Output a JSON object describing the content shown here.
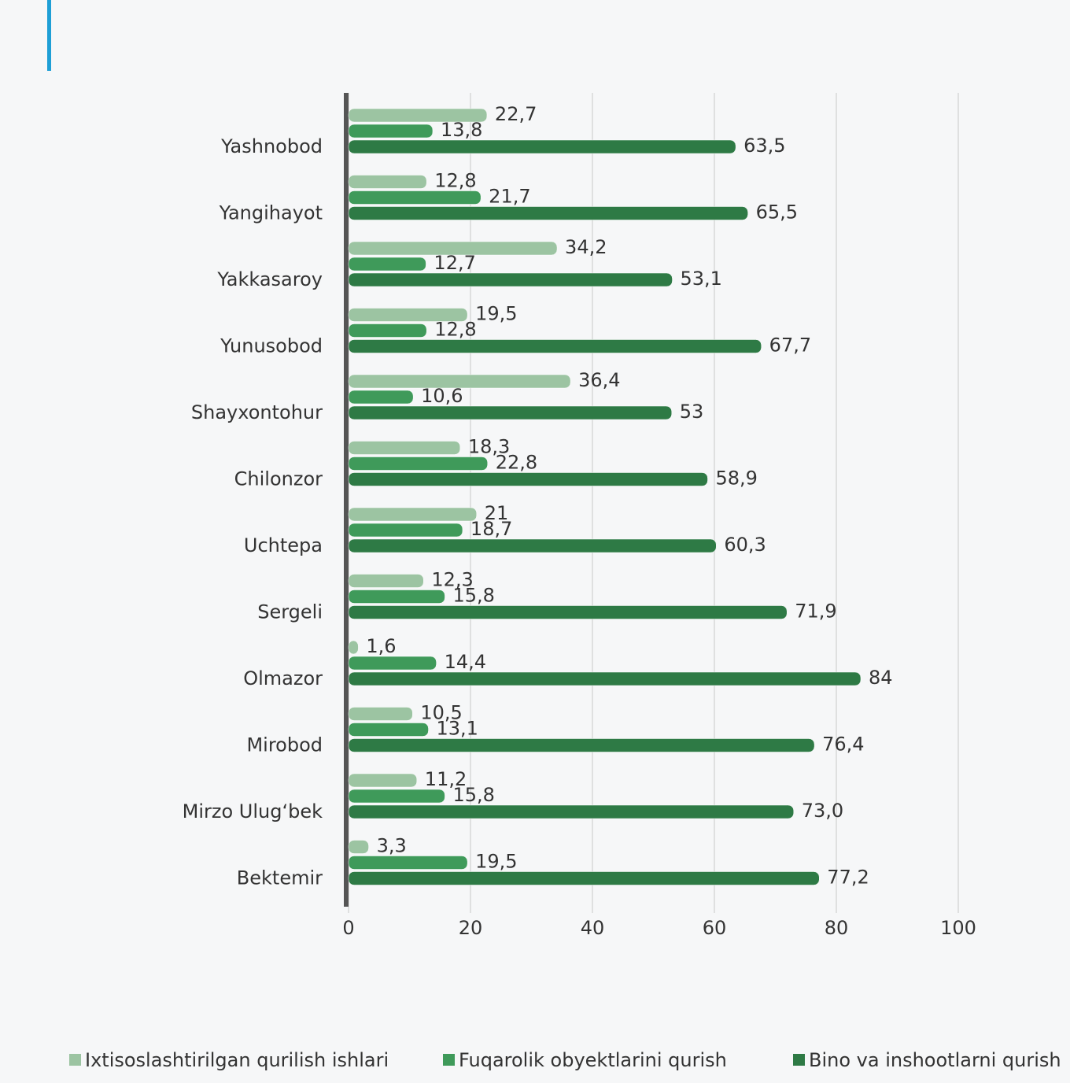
{
  "chart_data": {
    "type": "bar",
    "orientation": "horizontal",
    "categories": [
      "Yashnobod",
      "Yangihayot",
      "Yakkasaroy",
      "Yunusobod",
      "Shayxontohur",
      "Chilonzor",
      "Uchtepa",
      "Sergeli",
      "Olmazor",
      "Mirobod",
      "Mirzo Ulug‘bek",
      "Bektemir"
    ],
    "series": [
      {
        "name": "Ixtisoslashtirilgan qurilish ishlari",
        "color": "#9cc4a2",
        "values": [
          22.7,
          12.8,
          34.2,
          19.5,
          36.4,
          18.3,
          21,
          12.3,
          1.6,
          10.5,
          11.2,
          3.3
        ],
        "value_labels": [
          "22,7",
          "12,8",
          "34,2",
          "19,5",
          "36,4",
          "18,3",
          "21",
          "12,3",
          "1,6",
          "10,5",
          "11,2",
          "3,3"
        ]
      },
      {
        "name": "Fuqarolik obyektlarini qurish",
        "color": "#3f9a5a",
        "values": [
          13.8,
          21.7,
          12.7,
          12.8,
          10.6,
          22.8,
          18.7,
          15.8,
          14.4,
          13.1,
          15.8,
          19.5
        ],
        "value_labels": [
          "13,8",
          "21,7",
          "12,7",
          "12,8",
          "10,6",
          "22,8",
          "18,7",
          "15,8",
          "14,4",
          "13,1",
          "15,8",
          "19,5"
        ]
      },
      {
        "name": "Bino va inshootlarni qurish",
        "color": "#2e7a45",
        "values": [
          63.5,
          65.5,
          53.1,
          67.7,
          53,
          58.9,
          60.3,
          71.9,
          84,
          76.4,
          73.0,
          77.2
        ],
        "value_labels": [
          "63,5",
          "65,5",
          "53,1",
          "67,7",
          "53",
          "58,9",
          "60,3",
          "71,9",
          "84",
          "76,4",
          "73,0",
          "77,2"
        ]
      }
    ],
    "xlim": [
      0,
      100
    ],
    "xticks": [
      0,
      20,
      40,
      60,
      80,
      100
    ],
    "grid": true,
    "legend": "bottom"
  }
}
